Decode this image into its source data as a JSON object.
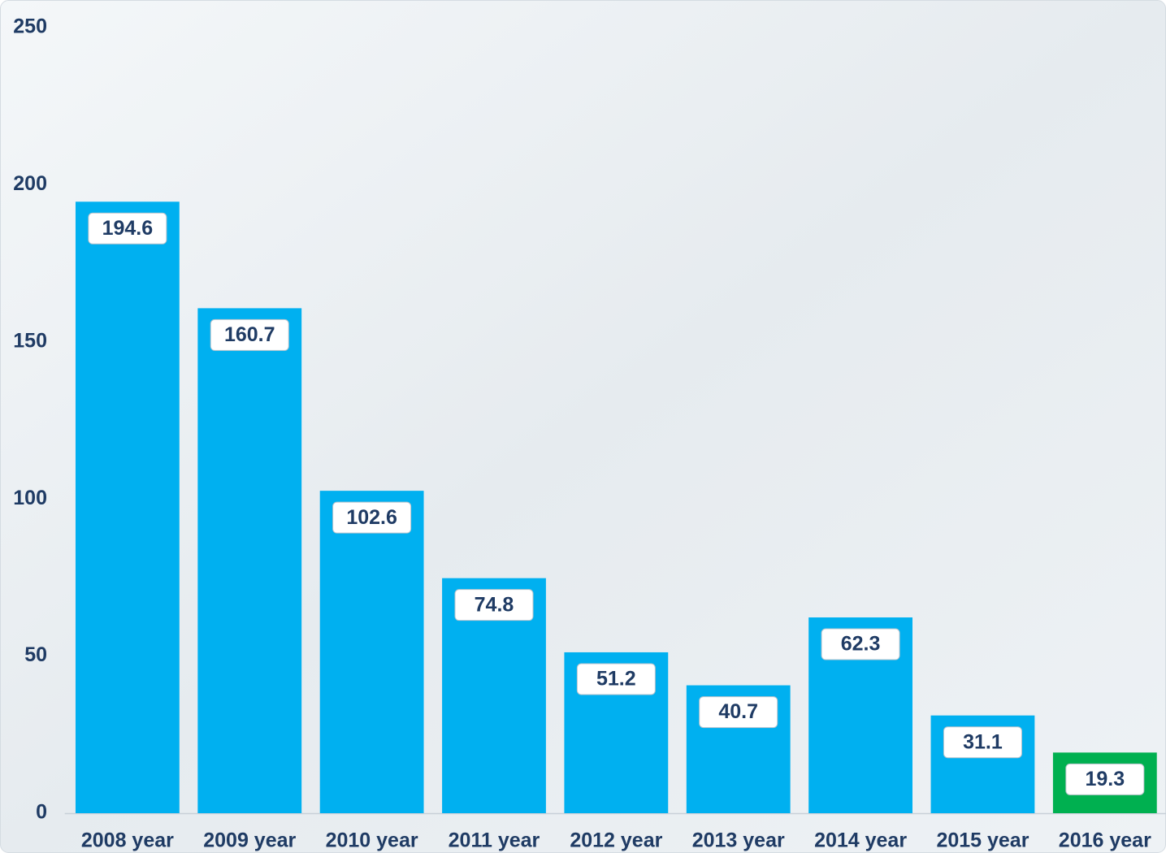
{
  "chart_data": {
    "type": "bar",
    "categories": [
      "2008 year",
      "2009 year",
      "2010 year",
      "2011 year",
      "2012 year",
      "2013 year",
      "2014 year",
      "2015 year",
      "2016 year"
    ],
    "values": [
      194.6,
      160.7,
      102.6,
      74.8,
      51.2,
      40.7,
      62.3,
      31.1,
      19.3
    ],
    "colors": [
      "#00b0f0",
      "#00b0f0",
      "#00b0f0",
      "#00b0f0",
      "#00b0f0",
      "#00b0f0",
      "#00b0f0",
      "#00b0f0",
      "#00b050"
    ],
    "ylim": [
      0,
      250
    ],
    "yticks": [
      0,
      50,
      100,
      150,
      200,
      250
    ],
    "grid": false
  }
}
